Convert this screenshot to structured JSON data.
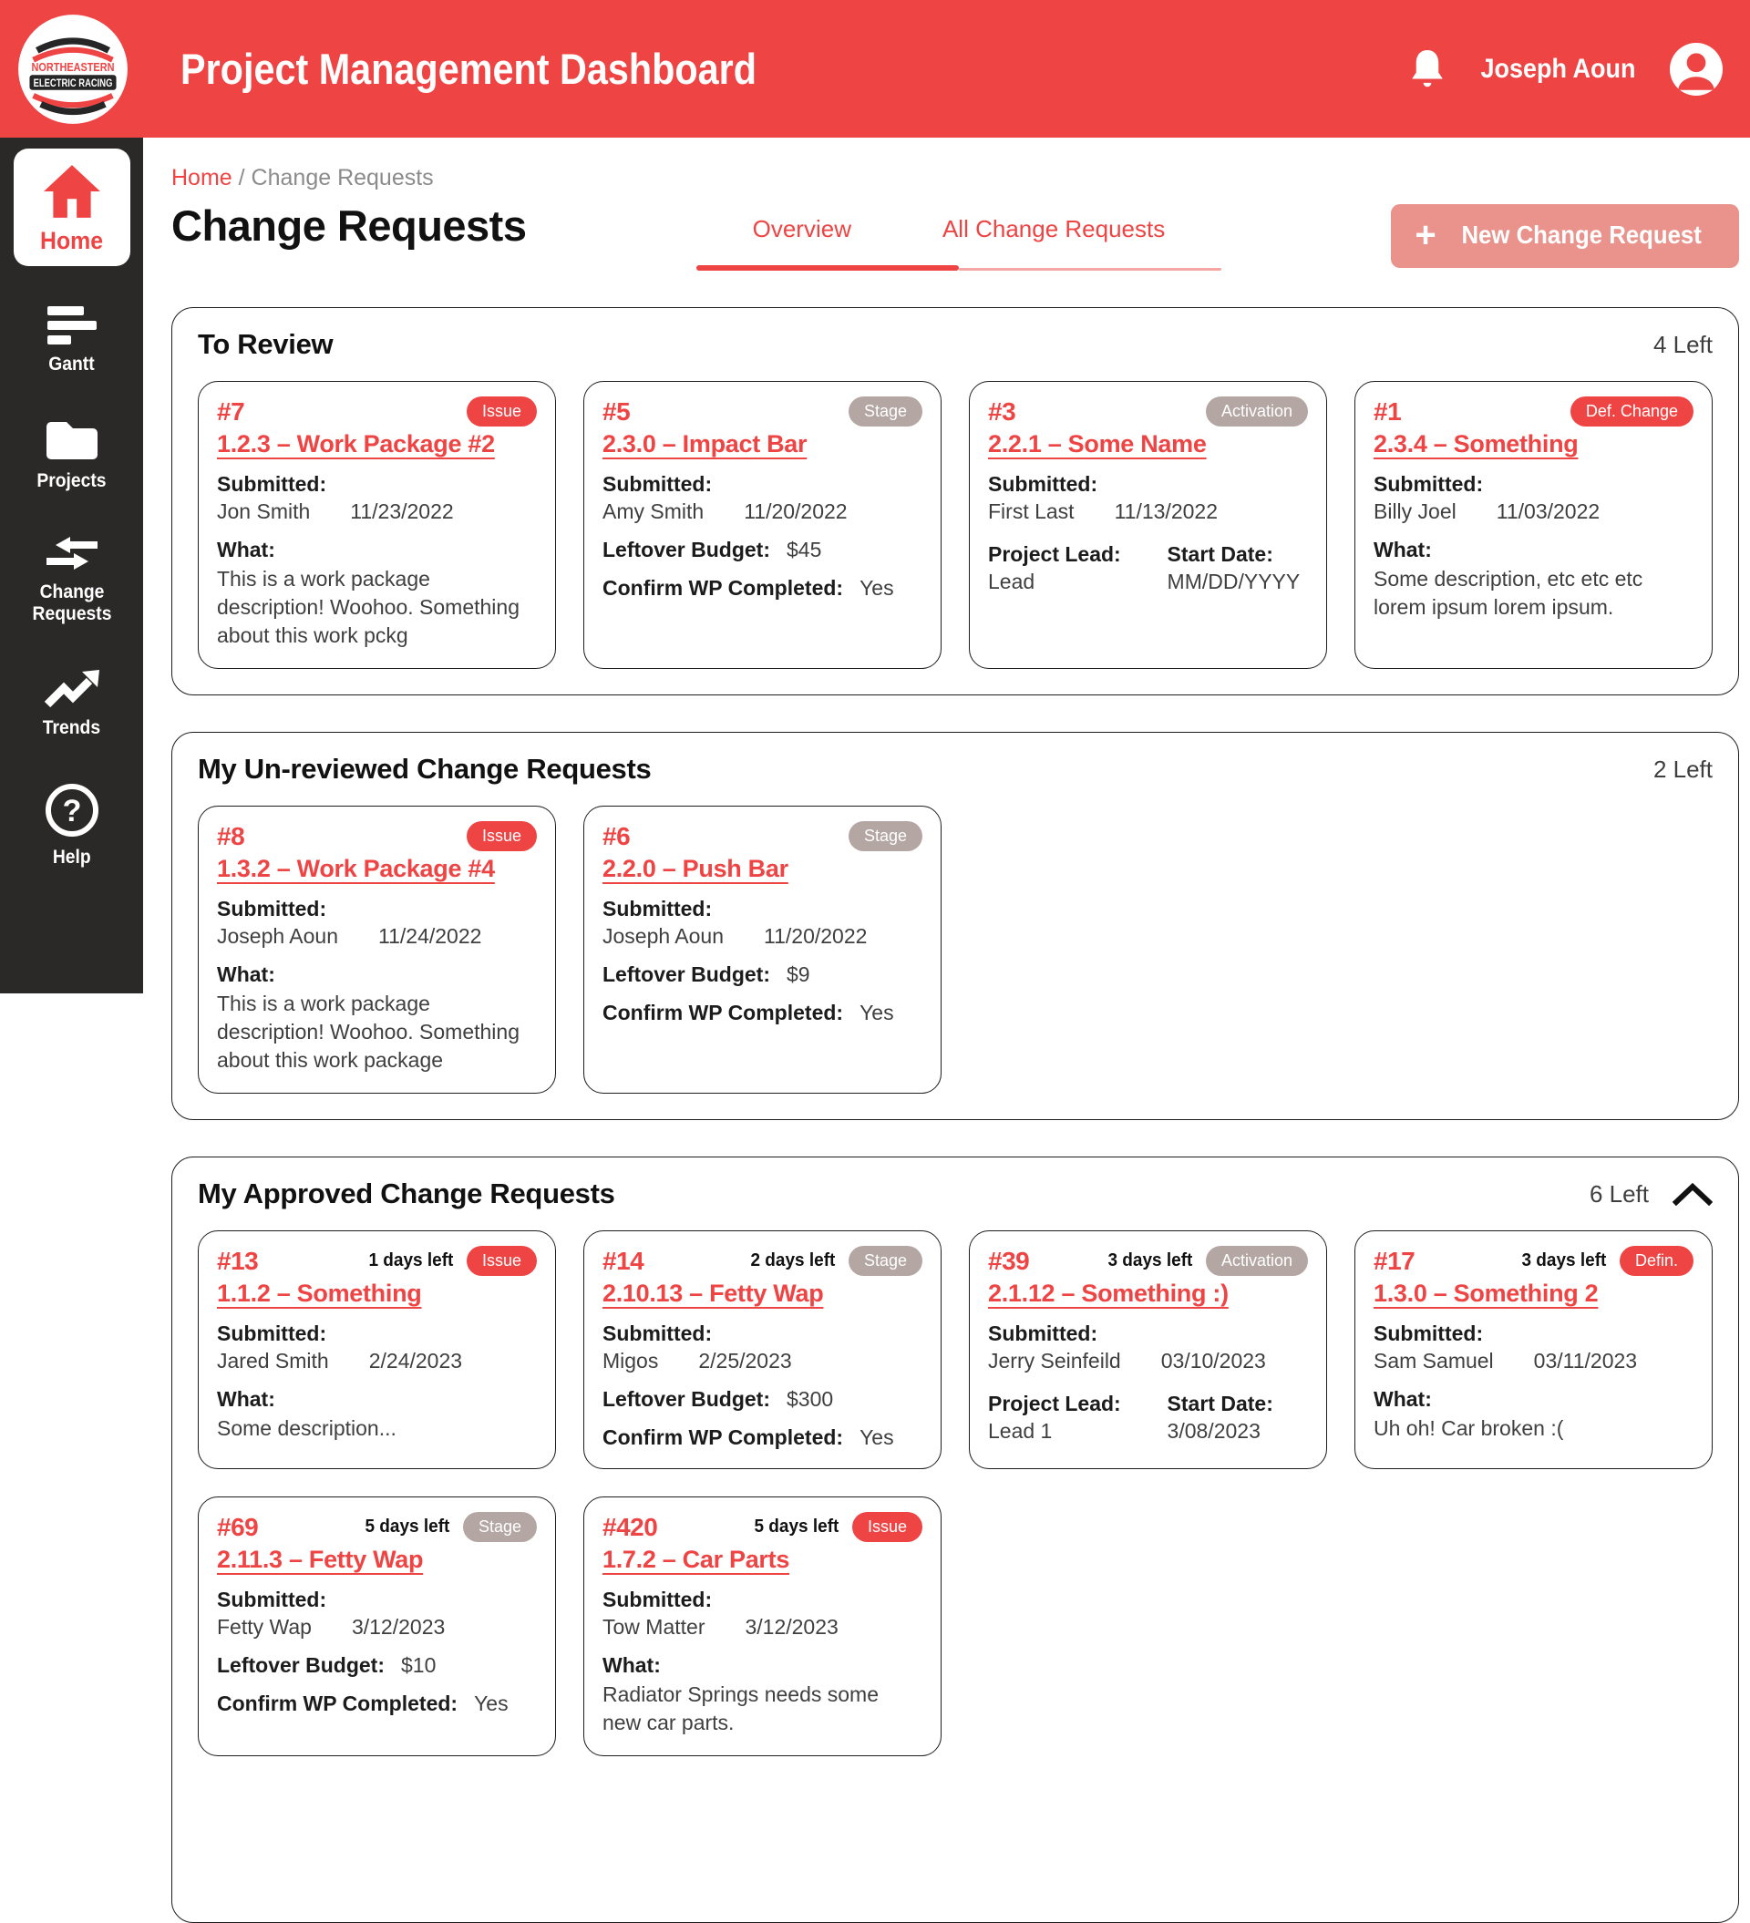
{
  "header": {
    "title": "Project Management Dashboard",
    "logo_line1": "NORTHEASTERN",
    "logo_line2": "ELECTRIC RACING",
    "user_name": "Joseph Aoun"
  },
  "sidebar": {
    "items": [
      {
        "label": "Home",
        "icon": "home-icon",
        "active": true
      },
      {
        "label": "Gantt",
        "icon": "gantt-icon",
        "active": false
      },
      {
        "label": "Projects",
        "icon": "folder-icon",
        "active": false
      },
      {
        "label": "Change Requests",
        "icon": "swap-arrows-icon",
        "active": false
      },
      {
        "label": "Trends",
        "icon": "trending-up-icon",
        "active": false
      },
      {
        "label": "Help",
        "icon": "question-circle-icon",
        "active": false
      }
    ]
  },
  "breadcrumb": {
    "home": "Home",
    "separator": "/",
    "current": "Change Requests"
  },
  "page": {
    "title": "Change Requests",
    "tabs": [
      {
        "label": "Overview",
        "active": true
      },
      {
        "label": "All Change Requests",
        "active": false
      }
    ],
    "new_button_label": "New Change Request",
    "plus_icon": "+"
  },
  "colors": {
    "accent_red": "#ef4444",
    "badge_gray": "#b3a6a3",
    "sidebar_bg": "#2b2828",
    "button_salmon": "#e9938c"
  },
  "sections": [
    {
      "title": "To Review",
      "count": "4 Left",
      "collapsible": false,
      "tall": false,
      "cards": [
        {
          "number": "#7",
          "days_left": "",
          "badge": {
            "label": "Issue",
            "style": "red"
          },
          "title": "1.2.3 – Work Package #2",
          "fields": [
            {
              "type": "pair",
              "label": "Submitted:",
              "name": "Jon Smith",
              "date": "11/23/2022"
            },
            {
              "type": "text",
              "label": "What:",
              "text": "This is a work package description! Woohoo. Something about this work pckg"
            }
          ]
        },
        {
          "number": "#5",
          "days_left": "",
          "badge": {
            "label": "Stage",
            "style": "gray"
          },
          "title": "2.3.0 – Impact Bar",
          "fields": [
            {
              "type": "pair",
              "label": "Submitted:",
              "name": "Amy Smith",
              "date": "11/20/2022"
            },
            {
              "type": "inline",
              "label": "Leftover Budget:",
              "value": "$45"
            },
            {
              "type": "inline",
              "label": "Confirm WP Completed:",
              "value": "Yes"
            }
          ]
        },
        {
          "number": "#3",
          "days_left": "",
          "badge": {
            "label": "Activation",
            "style": "gray"
          },
          "title": "2.2.1 – Some Name",
          "fields": [
            {
              "type": "pair",
              "label": "Submitted:",
              "name": "First Last",
              "date": "11/13/2022"
            },
            {
              "type": "twocol",
              "cols": [
                {
                  "label": "Project Lead:",
                  "value": "Lead"
                },
                {
                  "label": "Start Date:",
                  "value": "MM/DD/YYYY"
                }
              ]
            }
          ]
        },
        {
          "number": "#1",
          "days_left": "",
          "badge": {
            "label": "Def. Change",
            "style": "red"
          },
          "title": "2.3.4 – Something",
          "fields": [
            {
              "type": "pair",
              "label": "Submitted:",
              "name": "Billy Joel",
              "date": "11/03/2022"
            },
            {
              "type": "text",
              "label": "What:",
              "text": "Some description, etc etc etc lorem ipsum lorem ipsum."
            }
          ]
        }
      ]
    },
    {
      "title": "My Un-reviewed Change Requests",
      "count": "2 Left",
      "collapsible": false,
      "tall": false,
      "cards": [
        {
          "number": "#8",
          "days_left": "",
          "badge": {
            "label": "Issue",
            "style": "red"
          },
          "title": "1.3.2 – Work Package #4",
          "fields": [
            {
              "type": "pair",
              "label": "Submitted:",
              "name": "Joseph Aoun",
              "date": "11/24/2022"
            },
            {
              "type": "text",
              "label": "What:",
              "text": "This is a work package description! Woohoo. Something about this work package"
            }
          ]
        },
        {
          "number": "#6",
          "days_left": "",
          "badge": {
            "label": "Stage",
            "style": "gray"
          },
          "title": "2.2.0 – Push Bar",
          "fields": [
            {
              "type": "pair",
              "label": "Submitted:",
              "name": "Joseph Aoun",
              "date": "11/20/2022"
            },
            {
              "type": "inline",
              "label": "Leftover Budget:",
              "value": "$9"
            },
            {
              "type": "inline",
              "label": "Confirm WP Completed:",
              "value": "Yes"
            }
          ]
        }
      ]
    },
    {
      "title": "My Approved Change Requests",
      "count": "6 Left",
      "collapsible": true,
      "tall": true,
      "cards": [
        {
          "number": "#13",
          "days_left": "1 days left",
          "badge": {
            "label": "Issue",
            "style": "red"
          },
          "title": "1.1.2 – Something",
          "fields": [
            {
              "type": "pair",
              "label": "Submitted:",
              "name": "Jared Smith",
              "date": "2/24/2023"
            },
            {
              "type": "text",
              "label": "What:",
              "text": "Some description..."
            }
          ]
        },
        {
          "number": "#14",
          "days_left": "2 days left",
          "badge": {
            "label": "Stage",
            "style": "gray"
          },
          "title": "2.10.13 – Fetty Wap",
          "fields": [
            {
              "type": "pair",
              "label": "Submitted:",
              "name": "Migos",
              "date": "2/25/2023"
            },
            {
              "type": "inline",
              "label": "Leftover Budget:",
              "value": "$300"
            },
            {
              "type": "inline",
              "label": "Confirm WP Completed:",
              "value": "Yes"
            }
          ]
        },
        {
          "number": "#39",
          "days_left": "3 days left",
          "badge": {
            "label": "Activation",
            "style": "gray"
          },
          "title": "2.1.12 – Something :)",
          "fields": [
            {
              "type": "pair",
              "label": "Submitted:",
              "name": "Jerry Seinfeild",
              "date": "03/10/2023"
            },
            {
              "type": "twocol",
              "cols": [
                {
                  "label": "Project Lead:",
                  "value": "Lead 1"
                },
                {
                  "label": "Start Date:",
                  "value": "3/08/2023"
                }
              ]
            }
          ]
        },
        {
          "number": "#17",
          "days_left": "3 days left",
          "badge": {
            "label": "Defin.",
            "style": "red"
          },
          "title": "1.3.0 – Something 2",
          "fields": [
            {
              "type": "pair",
              "label": "Submitted:",
              "name": "Sam Samuel",
              "date": "03/11/2023"
            },
            {
              "type": "text",
              "label": "What:",
              "text": "Uh oh! Car broken :("
            }
          ]
        },
        {
          "number": "#69",
          "days_left": "5 days left",
          "badge": {
            "label": "Stage",
            "style": "gray"
          },
          "title": "2.11.3 – Fetty Wap",
          "fields": [
            {
              "type": "pair",
              "label": "Submitted:",
              "name": "Fetty Wap",
              "date": "3/12/2023"
            },
            {
              "type": "inline",
              "label": "Leftover Budget:",
              "value": "$10"
            },
            {
              "type": "inline",
              "label": "Confirm WP Completed:",
              "value": "Yes"
            }
          ]
        },
        {
          "number": "#420",
          "days_left": "5 days left",
          "badge": {
            "label": "Issue",
            "style": "red"
          },
          "title": "1.7.2 – Car Parts",
          "fields": [
            {
              "type": "pair",
              "label": "Submitted:",
              "name": "Tow Matter",
              "date": "3/12/2023"
            },
            {
              "type": "text",
              "label": "What:",
              "text": "Radiator Springs needs some new car parts."
            }
          ]
        }
      ]
    }
  ]
}
